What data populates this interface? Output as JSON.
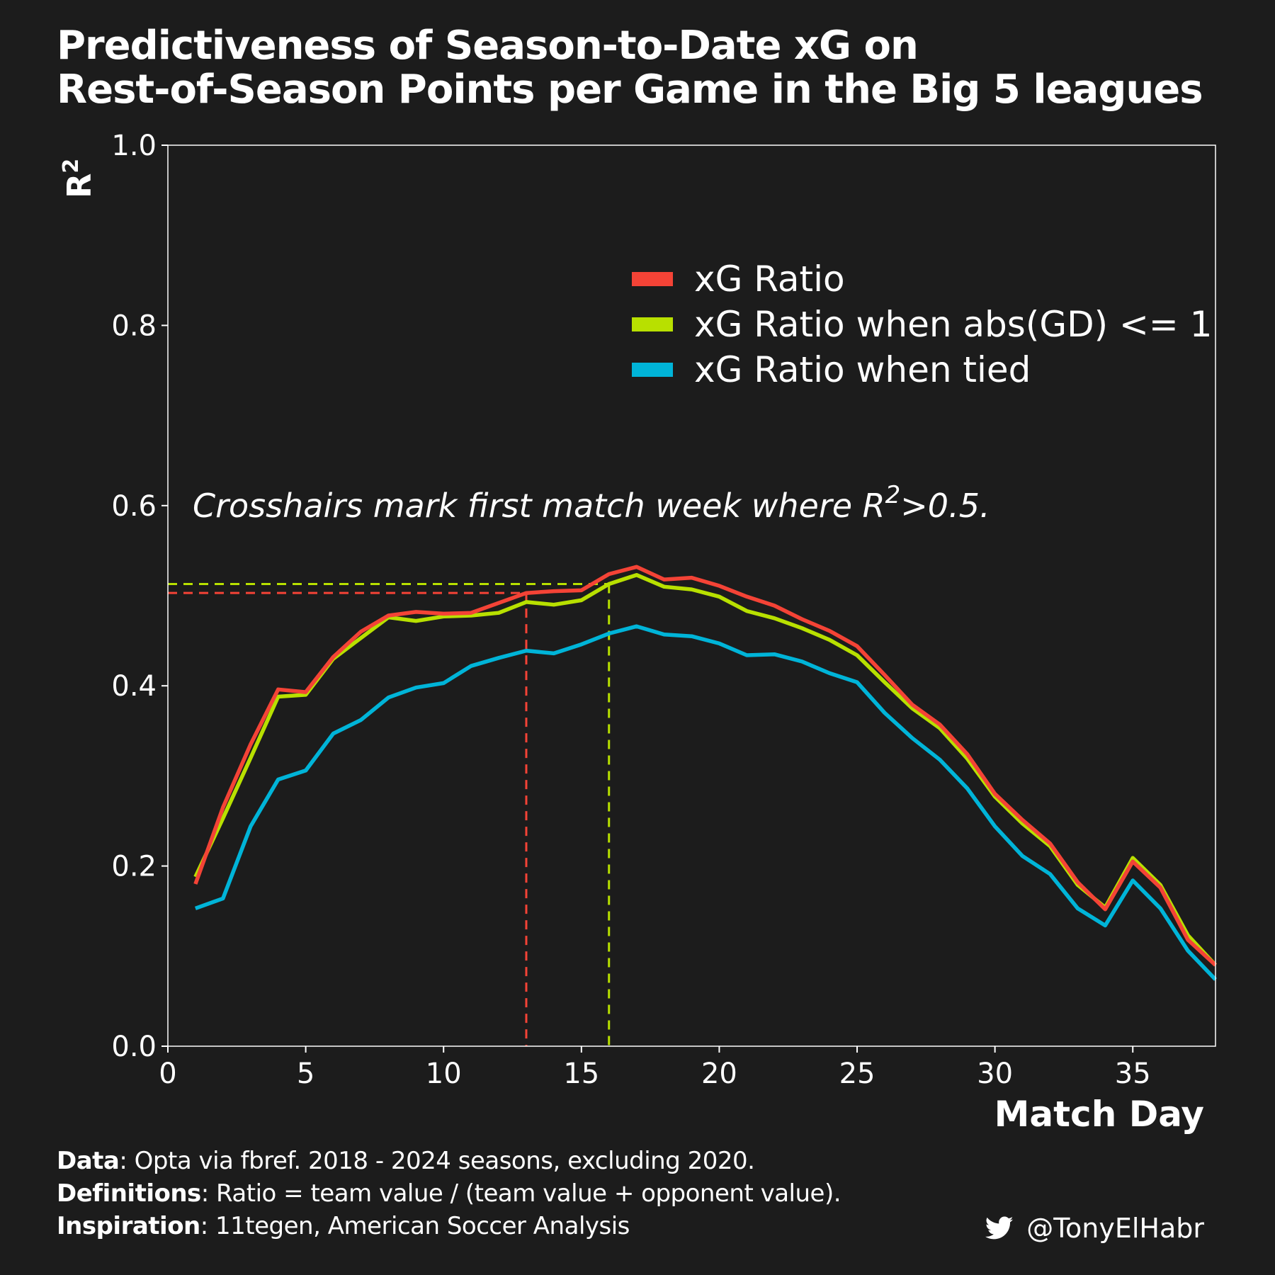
{
  "title_line1": "Predictiveness of Season-to-Date xG on",
  "title_line2": "Rest-of-Season Points per Game in the Big 5 leagues",
  "annotation": "Crosshairs mark first match week where R",
  "annotation_sup": "2",
  "annotation_tail": ">0.5.",
  "footer": {
    "data_label": "Data",
    "data_text": ": Opta via fbref. 2018 - 2024 seasons, excluding 2020.",
    "definitions_label": "Definitions",
    "definitions_text": ": Ratio = team value / (team value + opponent value).",
    "inspiration_label": "Inspiration",
    "inspiration_text": ": 11tegen, American Soccer Analysis"
  },
  "handle": "@TonyElHabr",
  "handle_icon": "twitter-bird-icon",
  "chart_data": {
    "type": "line",
    "xlabel": "Match Day",
    "ylabel": "R",
    "ylabel_sup": "2",
    "xlim": [
      0,
      38
    ],
    "ylim": [
      0,
      1
    ],
    "xticks": [
      0,
      5,
      10,
      15,
      20,
      25,
      30,
      35
    ],
    "xtick_labels": [
      "0",
      "5",
      "10",
      "15",
      "20",
      "25",
      "30",
      "35"
    ],
    "yticks": [
      0,
      0.2,
      0.4,
      0.6,
      0.8,
      1.0
    ],
    "ytick_labels": [
      "0.0",
      "0.2",
      "0.4",
      "0.6",
      "0.8",
      "1.0"
    ],
    "grid": false,
    "legend_position": "upper-right",
    "x": [
      1,
      2,
      3,
      4,
      5,
      6,
      7,
      8,
      9,
      10,
      11,
      12,
      13,
      14,
      15,
      16,
      17,
      18,
      19,
      20,
      21,
      22,
      23,
      24,
      25,
      26,
      27,
      28,
      29,
      30,
      31,
      32,
      33,
      34,
      35,
      36,
      37,
      38
    ],
    "series": [
      {
        "name": "xG Ratio",
        "color": "#f44336",
        "values": [
          0.18,
          0.265,
          0.335,
          0.396,
          0.393,
          0.432,
          0.46,
          0.478,
          0.482,
          0.48,
          0.481,
          0.492,
          0.503,
          0.505,
          0.506,
          0.524,
          0.532,
          0.518,
          0.52,
          0.511,
          0.499,
          0.489,
          0.474,
          0.461,
          0.444,
          0.412,
          0.379,
          0.357,
          0.324,
          0.28,
          0.251,
          0.225,
          0.182,
          0.152,
          0.205,
          0.176,
          0.118,
          0.09
        ]
      },
      {
        "name": "xG Ratio when abs(GD) <= 1",
        "color": "#b8e000",
        "values": [
          0.188,
          0.253,
          0.32,
          0.388,
          0.39,
          0.43,
          0.453,
          0.476,
          0.472,
          0.477,
          0.478,
          0.481,
          0.493,
          0.49,
          0.495,
          0.513,
          0.523,
          0.51,
          0.507,
          0.499,
          0.483,
          0.475,
          0.464,
          0.451,
          0.434,
          0.404,
          0.375,
          0.353,
          0.319,
          0.277,
          0.247,
          0.222,
          0.179,
          0.154,
          0.209,
          0.179,
          0.123,
          0.09
        ]
      },
      {
        "name": "xG Ratio when tied",
        "color": "#00b4d8",
        "values": [
          0.153,
          0.164,
          0.244,
          0.296,
          0.306,
          0.347,
          0.362,
          0.387,
          0.398,
          0.403,
          0.422,
          0.431,
          0.439,
          0.436,
          0.446,
          0.458,
          0.466,
          0.457,
          0.455,
          0.447,
          0.434,
          0.435,
          0.427,
          0.414,
          0.404,
          0.37,
          0.342,
          0.318,
          0.286,
          0.244,
          0.211,
          0.191,
          0.153,
          0.134,
          0.184,
          0.153,
          0.106,
          0.074
        ]
      }
    ],
    "crosshairs": [
      {
        "series": "xG Ratio",
        "x": 13,
        "y": 0.503,
        "color": "#f44336"
      },
      {
        "series": "xG Ratio when abs(GD) <= 1",
        "x": 16,
        "y": 0.513,
        "color": "#b8e000"
      }
    ]
  }
}
